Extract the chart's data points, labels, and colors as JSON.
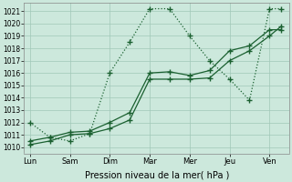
{
  "xlabel": "Pression niveau de la mer( hPa )",
  "xlabels": [
    "Lun",
    "Sam",
    "Dim",
    "Mar",
    "Mer",
    "Jeu",
    "Ven"
  ],
  "ylim": [
    1009.5,
    1021.7
  ],
  "yticks": [
    1010,
    1011,
    1012,
    1013,
    1014,
    1015,
    1016,
    1017,
    1018,
    1019,
    1020,
    1021
  ],
  "bg_color": "#cce8dc",
  "grid_color": "#a0c8b8",
  "line_color": "#1a6030",
  "line1_x": [
    0.0,
    0.5,
    1.0,
    1.5,
    2.0,
    2.5,
    3.0,
    3.5,
    4.0,
    4.5,
    5.0,
    5.5,
    6.0,
    6.3
  ],
  "line1_y": [
    1012.0,
    1010.8,
    1010.5,
    1011.1,
    1016.0,
    1018.5,
    1021.2,
    1021.2,
    1019.0,
    1017.0,
    1015.5,
    1013.8,
    1021.2,
    1021.2
  ],
  "line2_x": [
    0.0,
    0.5,
    1.0,
    1.5,
    2.0,
    2.5,
    3.0,
    3.5,
    4.0,
    4.5,
    5.0,
    5.5,
    6.0,
    6.3
  ],
  "line2_y": [
    1010.2,
    1010.5,
    1011.0,
    1011.1,
    1011.5,
    1012.2,
    1015.5,
    1015.5,
    1015.5,
    1015.6,
    1017.0,
    1017.8,
    1019.0,
    1019.8
  ],
  "line3_x": [
    0.0,
    0.5,
    1.0,
    1.5,
    2.0,
    2.5,
    3.0,
    3.5,
    4.0,
    4.5,
    5.0,
    5.5,
    6.0,
    6.3
  ],
  "line3_y": [
    1010.5,
    1010.8,
    1011.2,
    1011.3,
    1012.0,
    1012.8,
    1016.0,
    1016.1,
    1015.8,
    1016.2,
    1017.8,
    1018.2,
    1019.5,
    1019.5
  ],
  "xlim": [
    -0.15,
    6.5
  ]
}
